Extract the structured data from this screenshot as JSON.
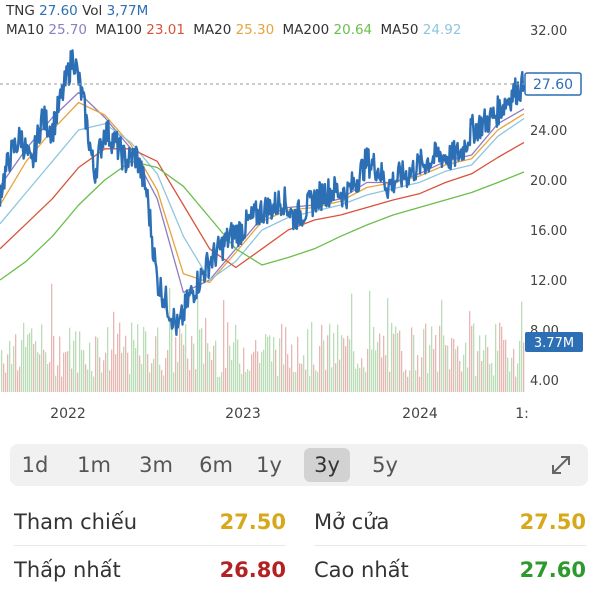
{
  "legend": {
    "symbol": "TNG",
    "price": "27.60",
    "vol_label": "Vol",
    "vol_value": "3,77M",
    "ma": [
      {
        "label": "MA10",
        "value": "25.70",
        "color": "#8e7cc3"
      },
      {
        "label": "MA100",
        "value": "23.01",
        "color": "#d9533c"
      },
      {
        "label": "MA20",
        "value": "25.30",
        "color": "#e8a33d"
      },
      {
        "label": "MA200",
        "value": "20.64",
        "color": "#6abf4b"
      },
      {
        "label": "MA50",
        "value": "24.92",
        "color": "#8fc6df"
      }
    ]
  },
  "chart_data": {
    "type": "line",
    "title": "",
    "x_ticks": [
      "2022",
      "2023",
      "2024",
      "1:"
    ],
    "y_ticks": [
      "32.00",
      "28.00",
      "24.00",
      "20.00",
      "16.00",
      "12.00",
      "8.00",
      "4.00"
    ],
    "ylim": [
      4,
      32
    ],
    "current_price_label": "27.60",
    "current_volume_label": "3.77M",
    "series": [
      {
        "name": "TNG",
        "color": "#2c6fb5",
        "x": [
          0,
          2,
          4,
          6,
          8,
          10,
          12,
          14,
          16,
          18,
          20,
          22,
          24,
          26,
          28,
          30,
          32,
          34,
          36,
          38,
          40,
          42,
          44,
          46,
          48,
          50,
          52,
          54,
          56,
          58,
          60,
          62,
          64,
          66,
          68,
          70,
          72,
          74,
          76,
          78,
          80,
          82,
          84,
          86,
          88,
          90,
          92,
          94,
          96,
          98,
          100
        ],
        "values": [
          19.0,
          22.0,
          23.5,
          21.0,
          25.0,
          24.0,
          27.0,
          30.0,
          26.0,
          20.5,
          24.0,
          23.0,
          21.5,
          22.0,
          19.0,
          12.0,
          10.0,
          8.0,
          10.5,
          12.0,
          13.5,
          14.5,
          15.5,
          16.0,
          16.8,
          17.6,
          17.8,
          18.5,
          17.0,
          17.5,
          18.4,
          19.0,
          19.2,
          18.8,
          20.0,
          21.5,
          21.0,
          19.5,
          20.2,
          20.5,
          21.2,
          21.6,
          22.0,
          21.8,
          22.2,
          24.0,
          24.5,
          25.0,
          26.0,
          27.0,
          27.6
        ]
      },
      {
        "name": "MA10",
        "color": "#8e7cc3",
        "x": [
          0,
          5,
          10,
          15,
          20,
          25,
          30,
          35,
          40,
          45,
          50,
          55,
          60,
          65,
          70,
          75,
          80,
          85,
          90,
          95,
          100
        ],
        "values": [
          19.5,
          22.5,
          25.0,
          27.0,
          25.0,
          22.5,
          18.5,
          11.0,
          12.0,
          14.5,
          17.0,
          17.8,
          18.0,
          18.5,
          19.8,
          19.8,
          20.5,
          21.5,
          22.0,
          24.5,
          25.7
        ]
      },
      {
        "name": "MA20",
        "color": "#e8a33d",
        "x": [
          0,
          5,
          10,
          15,
          20,
          25,
          30,
          35,
          40,
          45,
          50,
          55,
          60,
          65,
          70,
          75,
          80,
          85,
          90,
          95,
          100
        ],
        "values": [
          18.0,
          21.5,
          24.0,
          26.2,
          25.2,
          22.8,
          19.2,
          12.5,
          11.8,
          14.2,
          16.7,
          17.6,
          17.8,
          18.3,
          19.4,
          19.8,
          20.3,
          21.2,
          21.7,
          24.0,
          25.3
        ]
      },
      {
        "name": "MA50",
        "color": "#8fc6df",
        "x": [
          0,
          5,
          10,
          15,
          20,
          25,
          30,
          35,
          40,
          45,
          50,
          55,
          60,
          65,
          70,
          75,
          80,
          85,
          90,
          95,
          100
        ],
        "values": [
          16.5,
          19.0,
          21.5,
          24.0,
          24.5,
          23.0,
          20.5,
          15.5,
          12.0,
          13.5,
          16.0,
          17.0,
          17.5,
          18.0,
          18.8,
          19.3,
          19.8,
          20.7,
          21.2,
          23.5,
          24.92
        ]
      },
      {
        "name": "MA100",
        "color": "#d9533c",
        "x": [
          0,
          5,
          10,
          15,
          20,
          25,
          30,
          35,
          40,
          45,
          50,
          55,
          60,
          65,
          70,
          75,
          80,
          85,
          90,
          95,
          100
        ],
        "values": [
          14.5,
          16.5,
          18.5,
          21.0,
          22.5,
          22.5,
          21.5,
          18.0,
          14.5,
          13.0,
          14.5,
          16.0,
          16.8,
          17.2,
          17.8,
          18.4,
          18.9,
          19.8,
          20.5,
          21.8,
          23.01
        ]
      },
      {
        "name": "MA200",
        "color": "#6abf4b",
        "x": [
          0,
          5,
          10,
          15,
          20,
          25,
          30,
          35,
          40,
          45,
          50,
          55,
          60,
          65,
          70,
          75,
          80,
          85,
          90,
          95,
          100
        ],
        "values": [
          12.0,
          13.5,
          15.5,
          18.0,
          20.0,
          21.5,
          21.0,
          19.5,
          17.0,
          14.5,
          13.2,
          13.8,
          14.5,
          15.5,
          16.4,
          17.2,
          17.8,
          18.4,
          19.0,
          19.8,
          20.64
        ]
      }
    ],
    "grid": false
  },
  "timeframes": [
    {
      "label": "1d",
      "active": false
    },
    {
      "label": "1m",
      "active": false
    },
    {
      "label": "3m",
      "active": false
    },
    {
      "label": "6m",
      "active": false
    },
    {
      "label": "1y",
      "active": false
    },
    {
      "label": "3y",
      "active": true
    },
    {
      "label": "5y",
      "active": false
    }
  ],
  "stats": {
    "reference": {
      "label": "Tham chiếu",
      "value": "27.50",
      "color": "#d7a91a"
    },
    "open": {
      "label": "Mở cửa",
      "value": "27.50",
      "color": "#d7a91a"
    },
    "low": {
      "label": "Thấp nhất",
      "value": "26.80",
      "color": "#b32222"
    },
    "high": {
      "label": "Cao nhất",
      "value": "27.60",
      "color": "#2e9a2e"
    }
  }
}
